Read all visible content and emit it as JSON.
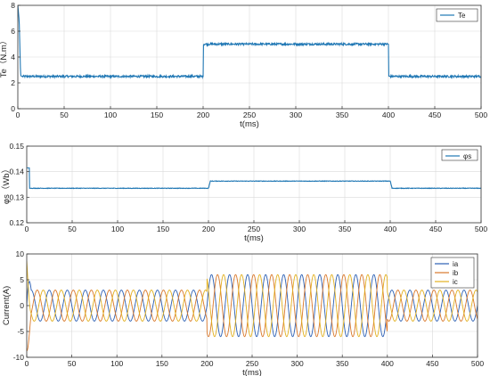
{
  "chart_data": [
    {
      "type": "line",
      "xlabel": "t(ms)",
      "ylabel": "Te（N.m）",
      "xlim": [
        0,
        500
      ],
      "ylim": [
        0,
        8
      ],
      "xticks": [
        0,
        50,
        100,
        150,
        200,
        250,
        300,
        350,
        400,
        450,
        500
      ],
      "yticks": [
        0,
        2,
        4,
        6,
        8
      ],
      "grid": true,
      "legend": "top-right",
      "colors": [
        "#1f77b4"
      ],
      "series": [
        {
          "name": "Te",
          "x": [
            0,
            1.5,
            3,
            4,
            200,
            200.1,
            400,
            400.1,
            500
          ],
          "y": [
            8,
            6.8,
            2.6,
            2.5,
            2.5,
            5.0,
            5.0,
            2.5,
            2.5
          ],
          "noise": 0.08
        }
      ]
    },
    {
      "type": "line",
      "xlabel": "t(ms)",
      "ylabel": "φs（Wb）",
      "xlim": [
        0,
        500
      ],
      "ylim": [
        0.12,
        0.15
      ],
      "xticks": [
        0,
        50,
        100,
        150,
        200,
        250,
        300,
        350,
        400,
        450,
        500
      ],
      "yticks": [
        0.12,
        0.13,
        0.14,
        0.15
      ],
      "grid": true,
      "legend": "top-right",
      "colors": [
        "#1f77b4"
      ],
      "series": [
        {
          "name": "φs",
          "x": [
            0,
            3,
            3.1,
            200,
            200.1,
            202,
            400,
            400.1,
            402,
            500
          ],
          "y": [
            0.1415,
            0.1415,
            0.1335,
            0.1335,
            0.1335,
            0.1363,
            0.1363,
            0.1363,
            0.1335,
            0.1335
          ],
          "noise": 0.0001
        }
      ]
    },
    {
      "type": "line",
      "xlabel": "t(ms)",
      "ylabel": "Current(A)",
      "xlim": [
        0,
        500
      ],
      "ylim": [
        -10,
        10
      ],
      "xticks": [
        0,
        50,
        100,
        150,
        200,
        250,
        300,
        350,
        400,
        450,
        500
      ],
      "yticks": [
        -10,
        -5,
        0,
        5,
        10
      ],
      "grid": true,
      "legend": "top-right",
      "colors": [
        "#2b5fb4",
        "#d9782b",
        "#e2b020"
      ],
      "period_ms": 20,
      "amplitude_segments": [
        {
          "from": 5,
          "to": 200,
          "amplitude": 3
        },
        {
          "from": 200,
          "to": 400,
          "amplitude": 6
        },
        {
          "from": 400,
          "to": 500,
          "amplitude": 3
        }
      ],
      "startup_peak": 10,
      "series": [
        {
          "name": "ia",
          "phase_deg": 0
        },
        {
          "name": "ib",
          "phase_deg": -120
        },
        {
          "name": "ic",
          "phase_deg": 120
        }
      ]
    }
  ]
}
